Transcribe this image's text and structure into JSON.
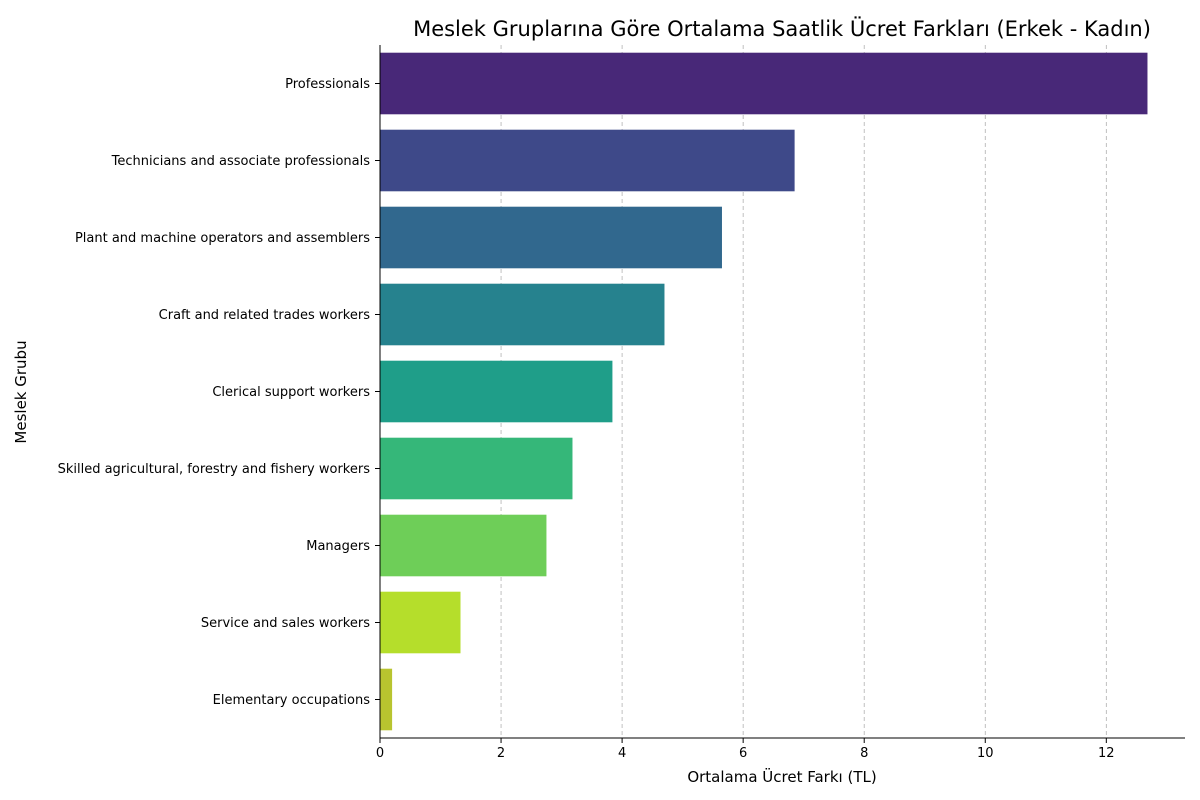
{
  "chart_data": {
    "type": "bar",
    "orientation": "horizontal",
    "title": "Meslek Gruplarına Göre Ortalama Saatlik Ücret Farkları (Erkek - Kadın)",
    "xlabel": "Ortalama Ücret Farkı (TL)",
    "ylabel": "Meslek Grubu",
    "categories": [
      "Professionals",
      "Technicians and associate professionals",
      "Plant and machine operators and assemblers",
      "Craft and related trades workers",
      "Clerical support workers",
      "Skilled agricultural, forestry and fishery workers",
      "Managers",
      "Service and sales workers",
      "Elementary occupations"
    ],
    "values": [
      12.68,
      6.85,
      5.65,
      4.7,
      3.84,
      3.18,
      2.75,
      1.33,
      0.2
    ],
    "colors": [
      "#482878",
      "#3e4989",
      "#31688e",
      "#26828e",
      "#1f9e89",
      "#35b779",
      "#6ece58",
      "#b5de2b",
      "#b8c42f"
    ],
    "xlim": [
      0,
      13.3
    ],
    "xticks": [
      0,
      2,
      4,
      6,
      8,
      10,
      12
    ],
    "grid": "vertical-dashed",
    "legend": "none"
  }
}
